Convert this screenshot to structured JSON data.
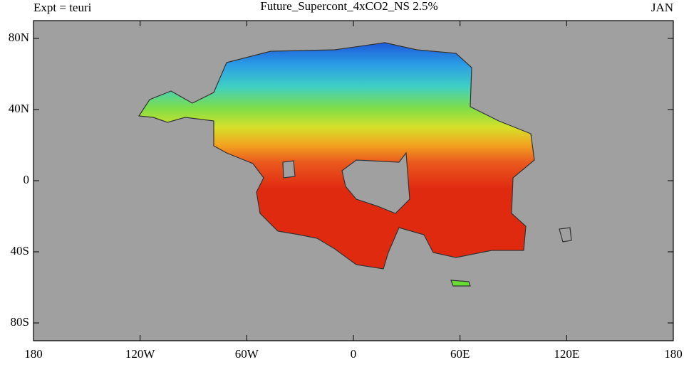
{
  "header": {
    "experiment": "Expt = teuri",
    "title": "Future_Supercont_4xCO2_NS 2.5%",
    "month": "JAN"
  },
  "map": {
    "xlim": [
      -180,
      180
    ],
    "ylim": [
      -90,
      90
    ],
    "xticks": [
      {
        "value": -180,
        "label": "180"
      },
      {
        "value": -120,
        "label": "120W"
      },
      {
        "value": -60,
        "label": "60W"
      },
      0,
      {
        "value": 60,
        "label": "60E"
      },
      {
        "value": 120,
        "label": "120E"
      },
      180
    ],
    "yticks": [
      {
        "value": 80,
        "label": "80N"
      },
      {
        "value": 40,
        "label": "40N"
      },
      0,
      {
        "value": -40,
        "label": "40S"
      },
      {
        "value": -80,
        "label": "80S"
      }
    ]
  }
}
